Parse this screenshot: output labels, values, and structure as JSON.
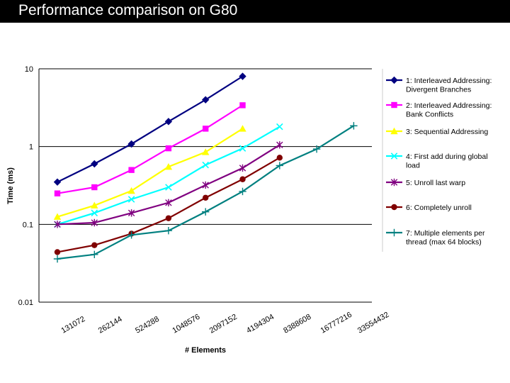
{
  "header": {
    "title": "Performance comparison on G80"
  },
  "chart_data": {
    "type": "line",
    "title": "Performance comparison on G80",
    "xlabel": "# Elements",
    "ylabel": "Time (ms)",
    "yscale": "log",
    "ylim": [
      0.01,
      10
    ],
    "y_ticks": [
      "10",
      "1",
      "0.1",
      "0.01"
    ],
    "categories": [
      "131072",
      "262144",
      "524288",
      "1048576",
      "2097152",
      "4194304",
      "8388608",
      "16777216",
      "33554432"
    ],
    "grid": "horizontal",
    "legend_position": "right",
    "series": [
      {
        "name": "1: Interleaved Addressing: Divergent Branches",
        "legend_lines": [
          "1: Interleaved Addressing:",
          "Divergent Branches"
        ],
        "color": "#000080",
        "marker": "diamond",
        "values": [
          0.35,
          0.6,
          1.08,
          2.1,
          4.0,
          8.0,
          null,
          null,
          null
        ]
      },
      {
        "name": "2: Interleaved Addressing: Bank Conflicts",
        "legend_lines": [
          "2: Interleaved Addressing:",
          "Bank Conflicts"
        ],
        "color": "#ff00ff",
        "marker": "square",
        "values": [
          0.25,
          0.3,
          0.5,
          0.95,
          1.7,
          3.4,
          null,
          null,
          null
        ]
      },
      {
        "name": "3: Sequential Addressing",
        "legend_lines": [
          "3: Sequential Addressing"
        ],
        "color": "#ffff00",
        "marker": "triangle",
        "values": [
          0.125,
          0.175,
          0.27,
          0.55,
          0.85,
          1.7,
          null,
          null,
          null
        ]
      },
      {
        "name": "4: First add during global load",
        "legend_lines": [
          "4: First add during global",
          "load"
        ],
        "color": "#00ffff",
        "marker": "x",
        "values": [
          0.1,
          0.14,
          0.21,
          0.3,
          0.58,
          0.95,
          1.8,
          null,
          null
        ]
      },
      {
        "name": "5: Unroll last warp",
        "legend_lines": [
          "5: Unroll last warp"
        ],
        "color": "#800080",
        "marker": "star",
        "values": [
          0.1,
          0.105,
          0.14,
          0.19,
          0.32,
          0.53,
          1.05,
          null,
          null
        ]
      },
      {
        "name": "6: Completely unroll",
        "legend_lines": [
          "6: Completely unroll"
        ],
        "color": "#800000",
        "marker": "circle",
        "values": [
          0.044,
          0.054,
          0.076,
          0.12,
          0.22,
          0.38,
          0.72,
          null,
          null
        ]
      },
      {
        "name": "7: Multiple elements per thread (max 64 blocks)",
        "legend_lines": [
          "7: Multiple elements per",
          "thread (max 64 blocks)"
        ],
        "color": "#008080",
        "marker": "plus",
        "values": [
          0.036,
          0.041,
          0.073,
          0.083,
          0.145,
          0.265,
          0.57,
          0.93,
          1.85
        ]
      }
    ]
  }
}
